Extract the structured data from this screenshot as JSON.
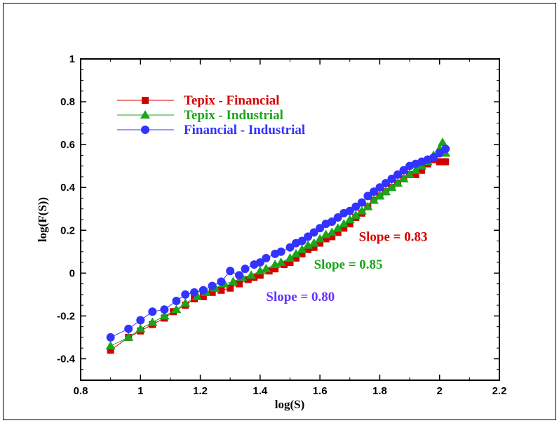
{
  "chart_data": {
    "type": "scatter",
    "xlabel": "log(S)",
    "ylabel": "log(F(S))",
    "xlim": [
      0.8,
      2.2
    ],
    "ylim": [
      -0.5,
      1.0
    ],
    "xticks": [
      "0.8",
      "1",
      "1.2",
      "1.4",
      "1.6",
      "1.8",
      "2",
      "2.2"
    ],
    "yticks": [
      "-0.4",
      "-0.2",
      "0",
      "0.2",
      "0.4",
      "0.6",
      "0.8",
      "1"
    ],
    "legend_position": "top-left",
    "grid": false,
    "series": [
      {
        "name": "Tepix - Financial",
        "color": "#d40000",
        "marker": "square",
        "slope": 0.83,
        "x": [
          0.9,
          0.96,
          1.0,
          1.04,
          1.08,
          1.11,
          1.15,
          1.18,
          1.21,
          1.24,
          1.27,
          1.3,
          1.33,
          1.36,
          1.38,
          1.4,
          1.43,
          1.45,
          1.48,
          1.5,
          1.52,
          1.54,
          1.56,
          1.58,
          1.6,
          1.62,
          1.64,
          1.66,
          1.68,
          1.7,
          1.72,
          1.74,
          1.76,
          1.78,
          1.8,
          1.82,
          1.84,
          1.86,
          1.88,
          1.9,
          1.92,
          1.94,
          1.96,
          1.98,
          2.0,
          2.02
        ],
        "y": [
          -0.36,
          -0.3,
          -0.27,
          -0.24,
          -0.21,
          -0.18,
          -0.15,
          -0.12,
          -0.11,
          -0.09,
          -0.08,
          -0.07,
          -0.05,
          -0.03,
          -0.02,
          -0.01,
          0.01,
          0.02,
          0.04,
          0.05,
          0.07,
          0.09,
          0.11,
          0.12,
          0.14,
          0.16,
          0.17,
          0.19,
          0.21,
          0.23,
          0.26,
          0.28,
          0.31,
          0.34,
          0.36,
          0.38,
          0.4,
          0.42,
          0.44,
          0.46,
          0.46,
          0.48,
          0.51,
          0.53,
          0.52,
          0.52
        ]
      },
      {
        "name": "Tepix - Industrial",
        "color": "#1aa51a",
        "marker": "triangle",
        "slope": 0.85,
        "x": [
          0.9,
          0.96,
          1.0,
          1.04,
          1.08,
          1.12,
          1.15,
          1.19,
          1.22,
          1.25,
          1.28,
          1.31,
          1.34,
          1.37,
          1.4,
          1.42,
          1.45,
          1.47,
          1.5,
          1.52,
          1.54,
          1.56,
          1.58,
          1.6,
          1.62,
          1.64,
          1.66,
          1.68,
          1.7,
          1.72,
          1.74,
          1.76,
          1.78,
          1.8,
          1.82,
          1.84,
          1.86,
          1.88,
          1.9,
          1.92,
          1.94,
          1.96,
          1.98,
          2.0,
          2.01,
          2.02
        ],
        "y": [
          -0.34,
          -0.3,
          -0.26,
          -0.23,
          -0.2,
          -0.17,
          -0.14,
          -0.11,
          -0.09,
          -0.07,
          -0.05,
          -0.04,
          -0.02,
          -0.01,
          0.01,
          0.02,
          0.04,
          0.05,
          0.07,
          0.09,
          0.11,
          0.13,
          0.14,
          0.16,
          0.18,
          0.19,
          0.21,
          0.23,
          0.25,
          0.27,
          0.29,
          0.31,
          0.34,
          0.36,
          0.38,
          0.4,
          0.42,
          0.44,
          0.46,
          0.48,
          0.5,
          0.52,
          0.55,
          0.58,
          0.61,
          0.56
        ]
      },
      {
        "name": "Financial - Industrial",
        "color": "#3333ff",
        "marker": "circle",
        "slope": 0.8,
        "x": [
          0.9,
          0.96,
          1.0,
          1.04,
          1.08,
          1.12,
          1.15,
          1.18,
          1.21,
          1.24,
          1.27,
          1.3,
          1.33,
          1.35,
          1.38,
          1.4,
          1.42,
          1.45,
          1.47,
          1.5,
          1.52,
          1.54,
          1.56,
          1.58,
          1.6,
          1.62,
          1.64,
          1.66,
          1.68,
          1.7,
          1.72,
          1.74,
          1.76,
          1.78,
          1.8,
          1.82,
          1.84,
          1.86,
          1.88,
          1.9,
          1.92,
          1.94,
          1.96,
          1.98,
          2.0,
          2.02
        ],
        "y": [
          -0.3,
          -0.26,
          -0.22,
          -0.18,
          -0.17,
          -0.13,
          -0.1,
          -0.09,
          -0.08,
          -0.06,
          -0.04,
          0.01,
          -0.01,
          0.02,
          0.04,
          0.05,
          0.07,
          0.09,
          0.1,
          0.12,
          0.14,
          0.15,
          0.17,
          0.19,
          0.21,
          0.23,
          0.24,
          0.26,
          0.28,
          0.29,
          0.31,
          0.33,
          0.36,
          0.38,
          0.4,
          0.42,
          0.44,
          0.46,
          0.48,
          0.5,
          0.51,
          0.52,
          0.53,
          0.54,
          0.56,
          0.58
        ]
      }
    ],
    "annotations": [
      {
        "text": "Slope = 0.83",
        "color": "#d40000",
        "x": 1.73,
        "y": 0.15
      },
      {
        "text": "Slope = 0.85",
        "color": "#1aa51a",
        "x": 1.58,
        "y": 0.02
      },
      {
        "text": "Slope = 0.80",
        "color": "#6633ff",
        "x": 1.42,
        "y": -0.13
      }
    ]
  }
}
